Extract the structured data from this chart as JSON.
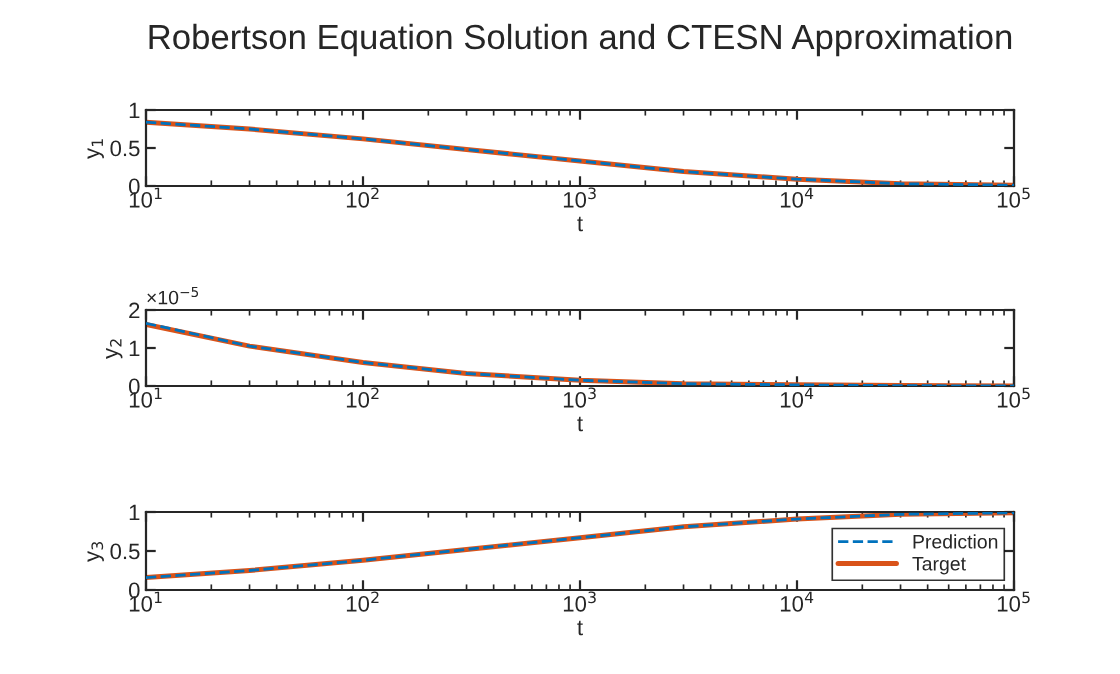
{
  "chart_data": [
    {
      "type": "line",
      "title": "Robertson Equation Solution and CTESN Approximation",
      "xlabel": "t",
      "ylabel": "y$_{1}$",
      "log": "x",
      "x": [
        10,
        30,
        100,
        300,
        1000,
        3000,
        10000,
        30000,
        100000
      ],
      "xlim": [
        10,
        100000
      ],
      "xticks": [
        {
          "value": 10,
          "label": "10$^{1}$"
        },
        {
          "value": 100,
          "label": "10$^{2}$"
        },
        {
          "value": 1000,
          "label": "10$^{3}$"
        },
        {
          "value": 10000,
          "label": "10$^{4}$"
        },
        {
          "value": 100000,
          "label": "10$^{5}$"
        }
      ],
      "ylim": [
        0,
        1
      ],
      "yticks": [
        0,
        0.5,
        1
      ],
      "legend": false,
      "series": [
        {
          "color": "#0072bd",
          "line_style": "dashed",
          "values": [
            0.84,
            0.75,
            0.62,
            0.48,
            0.33,
            0.19,
            0.09,
            0.03,
            0.01
          ]
        },
        {
          "color": "#d95319",
          "line_style": "solid",
          "values": [
            0.84,
            0.75,
            0.62,
            0.48,
            0.33,
            0.19,
            0.09,
            0.03,
            0.01
          ]
        }
      ]
    },
    {
      "type": "line",
      "xlabel": "t",
      "ylabel": "y$_{2}$",
      "log": "x",
      "x": [
        10,
        30,
        100,
        300,
        1000,
        3000,
        10000,
        30000,
        100000
      ],
      "annotations": [
        "×10$^{−5}$"
      ],
      "xlim": [
        10,
        100000
      ],
      "xticks": [
        {
          "value": 10,
          "label": "10$^{1}$"
        },
        {
          "value": 100,
          "label": "10$^{2}$"
        },
        {
          "value": 1000,
          "label": "10$^{3}$"
        },
        {
          "value": 10000,
          "label": "10$^{4}$"
        },
        {
          "value": 100000,
          "label": "10$^{5}$"
        }
      ],
      "ylim": [
        0,
        2
      ],
      "yticks": [
        0,
        1,
        2
      ],
      "legend": false,
      "series": [
        {
          "color": "#0072bd",
          "line_style": "dashed",
          "values": [
            1.65,
            1.05,
            0.62,
            0.33,
            0.15,
            0.06,
            0.03,
            0.01,
            0.0
          ]
        },
        {
          "color": "#d95319",
          "line_style": "solid",
          "values": [
            1.62,
            1.05,
            0.62,
            0.33,
            0.15,
            0.06,
            0.03,
            0.01,
            0.0
          ]
        }
      ]
    },
    {
      "type": "line",
      "xlabel": "t",
      "ylabel": "y$_{3}$",
      "log": "x",
      "x": [
        10,
        30,
        100,
        300,
        1000,
        3000,
        10000,
        30000,
        100000
      ],
      "xlim": [
        10,
        100000
      ],
      "xticks": [
        {
          "value": 10,
          "label": "10$^{1}$"
        },
        {
          "value": 100,
          "label": "10$^{2}$"
        },
        {
          "value": 1000,
          "label": "10$^{3}$"
        },
        {
          "value": 10000,
          "label": "10$^{4}$"
        },
        {
          "value": 100000,
          "label": "10$^{5}$"
        }
      ],
      "ylim": [
        0,
        1
      ],
      "yticks": [
        0,
        0.5,
        1
      ],
      "legend": "bottom right",
      "series": [
        {
          "name": "Prediction",
          "color": "#0072bd",
          "line_style": "dashed",
          "values": [
            0.16,
            0.25,
            0.38,
            0.52,
            0.67,
            0.81,
            0.91,
            0.97,
            0.99
          ]
        },
        {
          "name": "Target",
          "color": "#d95319",
          "line_style": "solid",
          "values": [
            0.16,
            0.25,
            0.38,
            0.52,
            0.67,
            0.81,
            0.91,
            0.97,
            0.99
          ]
        }
      ]
    }
  ]
}
